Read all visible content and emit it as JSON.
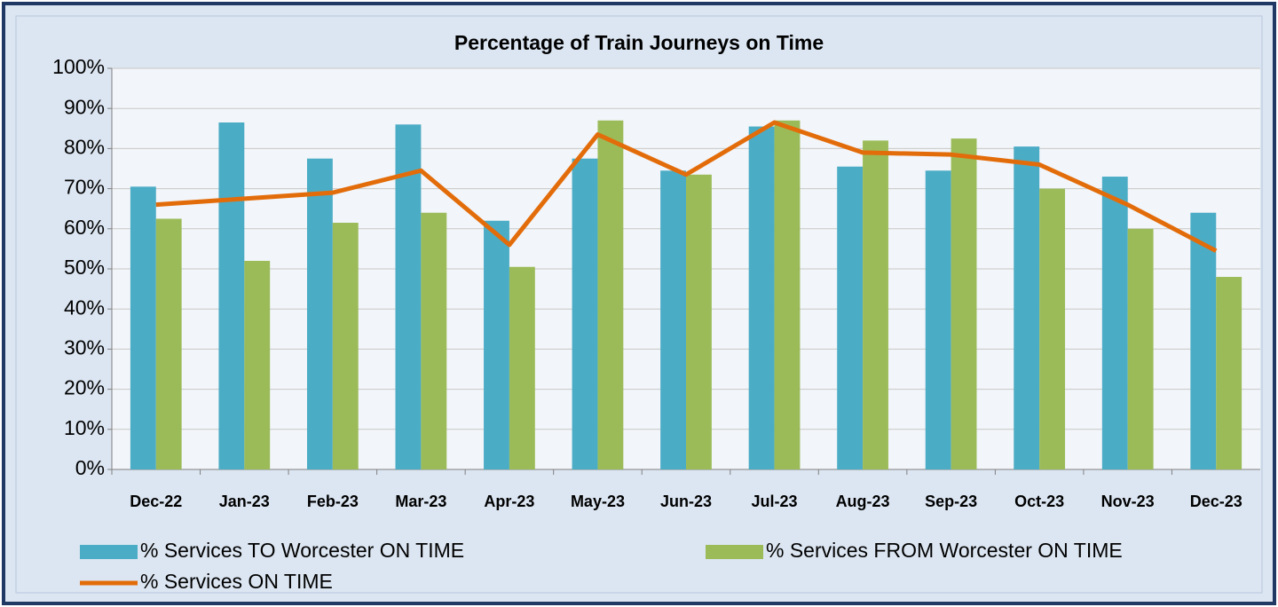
{
  "chart_data": {
    "type": "bar",
    "title": "Percentage of Train Journeys on Time",
    "categories": [
      "Dec-22",
      "Jan-23",
      "Feb-23",
      "Mar-23",
      "Apr-23",
      "May-23",
      "Jun-23",
      "Jul-23",
      "Aug-23",
      "Sep-23",
      "Oct-23",
      "Nov-23",
      "Dec-23"
    ],
    "series": [
      {
        "name": "% Services TO Worcester ON TIME",
        "type": "bar",
        "color": "#4bacc6",
        "values": [
          70.5,
          86.5,
          77.5,
          86,
          62,
          77.5,
          74.5,
          85.5,
          75.5,
          74.5,
          80.5,
          73,
          64
        ]
      },
      {
        "name": "% Services FROM Worcester ON TIME",
        "type": "bar",
        "color": "#9bbb59",
        "values": [
          62.5,
          52,
          61.5,
          64,
          50.5,
          87,
          73.5,
          87,
          82,
          82.5,
          70,
          60,
          48
        ]
      },
      {
        "name": "% Services ON TIME",
        "type": "line",
        "color": "#e36c0a",
        "values": [
          66,
          67.5,
          69,
          74.5,
          56,
          83.5,
          73.5,
          86.5,
          79,
          78.5,
          76,
          66,
          54.5
        ]
      }
    ],
    "ylim": [
      0,
      100
    ],
    "yticks": [
      {
        "value": 0,
        "label": "0%"
      },
      {
        "value": 10,
        "label": "10%"
      },
      {
        "value": 20,
        "label": "20%"
      },
      {
        "value": 30,
        "label": "30%"
      },
      {
        "value": 40,
        "label": "40%"
      },
      {
        "value": 50,
        "label": "50%"
      },
      {
        "value": 60,
        "label": "60%"
      },
      {
        "value": 70,
        "label": "70%"
      },
      {
        "value": 80,
        "label": "80%"
      },
      {
        "value": 90,
        "label": "90%"
      },
      {
        "value": 100,
        "label": "100%"
      }
    ],
    "grid": true,
    "legend": "bottom"
  }
}
